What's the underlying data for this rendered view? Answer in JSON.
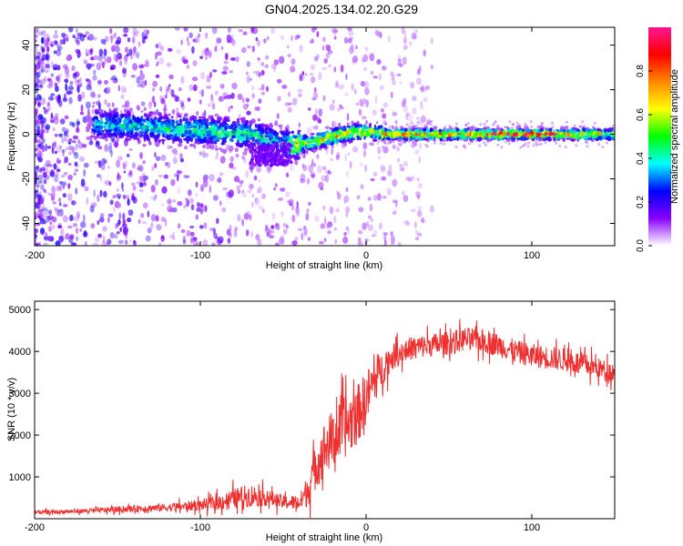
{
  "title": "GN04.2025.134.02.20.G29",
  "chart_data": [
    {
      "type": "heatmap",
      "xlabel": "Height of straight line (km)",
      "ylabel": "Frequency (Hz)",
      "xlim": [
        -200,
        150
      ],
      "ylim": [
        -50,
        48
      ],
      "xticks": [
        "-200",
        "-100",
        "0",
        "100"
      ],
      "yticks": [
        "-40",
        "-20",
        "0",
        "20",
        "40"
      ],
      "colorbar": {
        "label": "Normalized spectral amplitude",
        "ticks": [
          "0.0",
          "0.2",
          "0.4",
          "0.6",
          "0.8"
        ],
        "range": [
          0,
          1
        ],
        "colors": [
          "#ffffff",
          "#8800ff",
          "#0000ff",
          "#00ffff",
          "#00ff00",
          "#ffff00",
          "#ff8800",
          "#ff0000",
          "#ff1493"
        ]
      },
      "ridge": [
        {
          "x": -165,
          "y": 5,
          "a": 0.35
        },
        {
          "x": -150,
          "y": 4,
          "a": 0.4
        },
        {
          "x": -130,
          "y": 3,
          "a": 0.4
        },
        {
          "x": -110,
          "y": 2,
          "a": 0.45
        },
        {
          "x": -90,
          "y": 1,
          "a": 0.45
        },
        {
          "x": -70,
          "y": 0,
          "a": 0.45
        },
        {
          "x": -60,
          "y": -2,
          "a": 0.4
        },
        {
          "x": -50,
          "y": -4,
          "a": 0.35
        },
        {
          "x": -45,
          "y": -5,
          "a": 0.7
        },
        {
          "x": -35,
          "y": -4,
          "a": 0.65
        },
        {
          "x": -25,
          "y": -2,
          "a": 0.7
        },
        {
          "x": -15,
          "y": 0,
          "a": 0.75
        },
        {
          "x": -5,
          "y": 1,
          "a": 0.7
        },
        {
          "x": 5,
          "y": 1,
          "a": 0.6
        },
        {
          "x": 10,
          "y": 0,
          "a": 0.8
        },
        {
          "x": 30,
          "y": 0,
          "a": 0.85
        },
        {
          "x": 60,
          "y": 0,
          "a": 0.8
        },
        {
          "x": 85,
          "y": 0,
          "a": 0.95
        },
        {
          "x": 100,
          "y": 0,
          "a": 0.95
        },
        {
          "x": 130,
          "y": 0,
          "a": 0.75
        },
        {
          "x": 150,
          "y": 0,
          "a": 0.65
        }
      ]
    },
    {
      "type": "line",
      "xlabel": "Height of straight line (km)",
      "ylabel": "SNR (10 * v/v)",
      "xlim": [
        -200,
        150
      ],
      "ylim": [
        0,
        5200
      ],
      "xticks": [
        "-200",
        "-100",
        "0",
        "100"
      ],
      "yticks": [
        "1000",
        "2000",
        "3000",
        "4000",
        "5000"
      ],
      "series": [
        {
          "color": "#ee3030",
          "x": [
            -200,
            -180,
            -160,
            -140,
            -120,
            -100,
            -90,
            -80,
            -70,
            -60,
            -50,
            -40,
            -35,
            -30,
            -25,
            -20,
            -15,
            -10,
            -5,
            0,
            5,
            10,
            15,
            20,
            25,
            30,
            40,
            50,
            60,
            70,
            80,
            90,
            100,
            110,
            120,
            130,
            140,
            150
          ],
          "y": [
            150,
            170,
            200,
            240,
            270,
            320,
            380,
            480,
            560,
            500,
            400,
            380,
            700,
            1300,
            1700,
            1900,
            2100,
            2300,
            2500,
            2900,
            3300,
            3600,
            3850,
            3950,
            4050,
            4100,
            4150,
            4200,
            4300,
            4250,
            4150,
            4000,
            3900,
            3850,
            3800,
            3700,
            3600,
            3500
          ],
          "noise": [
            60,
            60,
            80,
            100,
            120,
            160,
            220,
            300,
            350,
            250,
            200,
            250,
            500,
            700,
            800,
            900,
            900,
            950,
            900,
            800,
            700,
            500,
            400,
            350,
            350,
            350,
            350,
            350,
            350,
            350,
            350,
            350,
            350,
            350,
            350,
            350,
            300,
            300
          ]
        }
      ]
    }
  ]
}
